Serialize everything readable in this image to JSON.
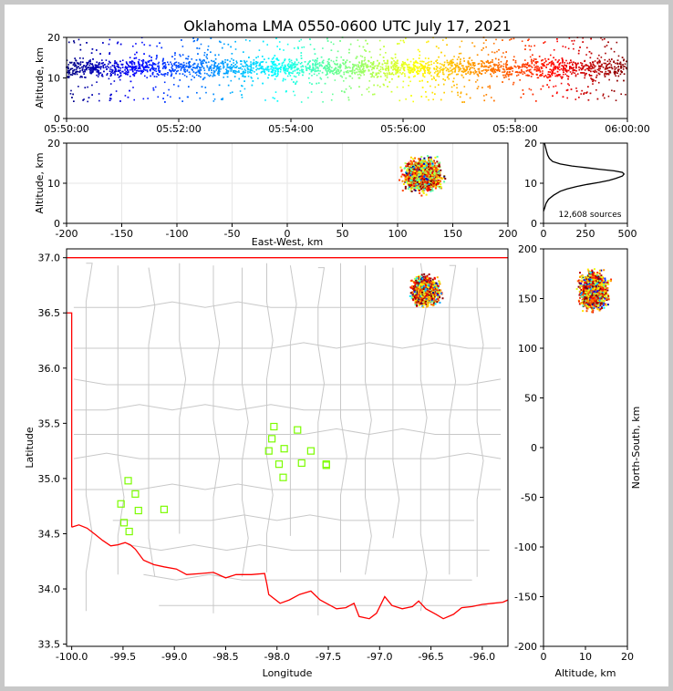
{
  "title": "Oklahoma LMA 0550-0600 UTC July 17, 2021",
  "source_count_label": "12,608 sources",
  "chart_data": [
    {
      "type": "scatter",
      "name": "altitude-vs-time",
      "xlabel": "",
      "ylabel": "Altitude, km",
      "x_ticks": [
        "05:50:00",
        "05:52:00",
        "05:54:00",
        "05:56:00",
        "05:58:00",
        "06:00:00"
      ],
      "xlim_minutes": [
        0,
        10
      ],
      "ylim": [
        0,
        20
      ],
      "y_ticks": [
        0,
        10,
        20
      ],
      "colormap": "jet (time)",
      "altitude_core_km": [
        9,
        15
      ],
      "altitude_spread_km": [
        3,
        20
      ]
    },
    {
      "type": "scatter",
      "name": "altitude-vs-east-west",
      "xlabel": "East-West, km",
      "ylabel": "Altitude, km",
      "xlim": [
        -200,
        200
      ],
      "ylim": [
        0,
        20
      ],
      "x_ticks": [
        -200,
        -150,
        -100,
        -50,
        0,
        50,
        100,
        150,
        200
      ],
      "y_ticks": [
        0,
        10,
        20
      ],
      "cluster_x_km": [
        93,
        153
      ]
    },
    {
      "type": "line",
      "name": "altitude-histogram",
      "xlim": [
        0,
        500
      ],
      "ylim": [
        0,
        20
      ],
      "x_ticks": [
        0,
        250,
        500
      ],
      "y_ticks": [
        0,
        10,
        20
      ],
      "profile": [
        [
          0,
          3
        ],
        [
          8,
          4
        ],
        [
          15,
          5
        ],
        [
          30,
          6
        ],
        [
          60,
          7
        ],
        [
          100,
          8
        ],
        [
          140,
          8.6
        ],
        [
          200,
          9.2
        ],
        [
          260,
          9.7
        ],
        [
          330,
          10.2
        ],
        [
          390,
          10.7
        ],
        [
          430,
          11.2
        ],
        [
          470,
          11.8
        ],
        [
          480,
          12.3
        ],
        [
          470,
          12.7
        ],
        [
          420,
          13.1
        ],
        [
          330,
          13.5
        ],
        [
          250,
          13.9
        ],
        [
          170,
          14.3
        ],
        [
          100,
          14.8
        ],
        [
          55,
          15.4
        ],
        [
          35,
          16.2
        ],
        [
          25,
          17
        ],
        [
          18,
          18
        ],
        [
          12,
          19
        ],
        [
          6,
          20
        ]
      ]
    },
    {
      "type": "scatter",
      "name": "plan-view-map",
      "xlabel": "Longitude",
      "ylabel": "Latitude",
      "xlim": [
        -100.05,
        -95.75
      ],
      "ylim": [
        33.48,
        37.08
      ],
      "x_ticks": [
        -100.0,
        -99.5,
        -99.0,
        -98.5,
        -98.0,
        -97.5,
        -97.0,
        -96.5,
        -96.0
      ],
      "y_ticks": [
        33.5,
        34.0,
        34.5,
        35.0,
        35.5,
        36.0,
        36.5,
        37.0
      ],
      "stations": [
        [
          -98.03,
          35.47
        ],
        [
          -97.8,
          35.44
        ],
        [
          -98.05,
          35.36
        ],
        [
          -97.93,
          35.27
        ],
        [
          -98.08,
          35.25
        ],
        [
          -97.67,
          35.25
        ],
        [
          -97.98,
          35.13
        ],
        [
          -97.76,
          35.14
        ],
        [
          -97.52,
          35.13
        ],
        [
          -97.52,
          35.12
        ],
        [
          -97.94,
          35.01
        ],
        [
          -99.45,
          34.98
        ],
        [
          -99.38,
          34.86
        ],
        [
          -99.52,
          34.77
        ],
        [
          -99.35,
          34.71
        ],
        [
          -99.1,
          34.72
        ],
        [
          -99.49,
          34.6
        ],
        [
          -99.44,
          34.52
        ]
      ],
      "cluster_center": [
        -96.55,
        36.7
      ]
    },
    {
      "type": "scatter",
      "name": "north-south-vs-altitude",
      "xlabel": "Altitude, km",
      "ylabel": "North-South, km",
      "xlim": [
        0,
        20
      ],
      "ylim": [
        -200,
        200
      ],
      "x_ticks": [
        0,
        10,
        20
      ],
      "y_ticks": [
        -200,
        -150,
        -100,
        -50,
        0,
        50,
        100,
        150,
        200
      ],
      "cluster_ns_km": [
        118,
        200
      ]
    }
  ]
}
